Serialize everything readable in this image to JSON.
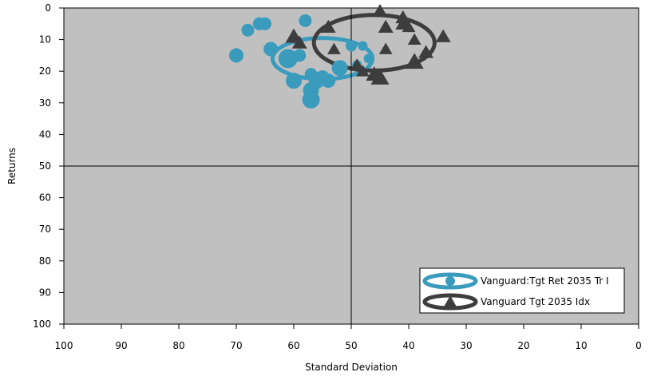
{
  "chart_data": {
    "type": "scatter",
    "xlabel": "Standard Deviation",
    "ylabel": "Returns",
    "xlim": [
      100,
      0
    ],
    "ylim": [
      0,
      100
    ],
    "x_ticks": [
      100,
      90,
      80,
      70,
      60,
      50,
      40,
      30,
      20,
      10,
      0
    ],
    "y_ticks": [
      0,
      10,
      20,
      30,
      40,
      50,
      60,
      70,
      80,
      90,
      100
    ],
    "reference_lines": {
      "x": 50,
      "y": 50
    },
    "plot_background": "#c0c0c0",
    "legend_position": "bottom-right",
    "series": [
      {
        "name": "Vanguard:Tgt Ret 2035 Tr I",
        "marker": "circle",
        "color": "#3a9bbd",
        "ellipse": {
          "cx": 55,
          "cy": 16,
          "rx": 8.7,
          "ry": 6.5
        },
        "points": [
          {
            "x": 70,
            "y": 15,
            "r": 9
          },
          {
            "x": 68,
            "y": 7,
            "r": 8
          },
          {
            "x": 66,
            "y": 5,
            "r": 8
          },
          {
            "x": 65,
            "y": 5,
            "r": 8
          },
          {
            "x": 64,
            "y": 13,
            "r": 9
          },
          {
            "x": 61,
            "y": 16,
            "r": 12
          },
          {
            "x": 60,
            "y": 23,
            "r": 10
          },
          {
            "x": 59,
            "y": 15,
            "r": 8
          },
          {
            "x": 58,
            "y": 4,
            "r": 8
          },
          {
            "x": 57,
            "y": 21,
            "r": 8
          },
          {
            "x": 57,
            "y": 26,
            "r": 10
          },
          {
            "x": 57,
            "y": 29,
            "r": 11
          },
          {
            "x": 56,
            "y": 23,
            "r": 10
          },
          {
            "x": 55,
            "y": 22,
            "r": 9
          },
          {
            "x": 54,
            "y": 23,
            "r": 9
          },
          {
            "x": 52,
            "y": 19,
            "r": 10
          },
          {
            "x": 50,
            "y": 12,
            "r": 7
          },
          {
            "x": 49,
            "y": 18,
            "r": 6
          },
          {
            "x": 48,
            "y": 12,
            "r": 6
          },
          {
            "x": 47,
            "y": 16,
            "r": 6
          }
        ]
      },
      {
        "name": "Vanguard Tgt 2035 Idx",
        "marker": "triangle",
        "color": "#3d3d3d",
        "ellipse": {
          "cx": 46,
          "cy": 11,
          "rx": 10.5,
          "ry": 8.8
        },
        "points": [
          {
            "x": 60,
            "y": 9,
            "s": 10
          },
          {
            "x": 59,
            "y": 11,
            "s": 9
          },
          {
            "x": 54,
            "y": 6,
            "s": 9
          },
          {
            "x": 53,
            "y": 13,
            "s": 8
          },
          {
            "x": 49,
            "y": 18,
            "s": 8
          },
          {
            "x": 48,
            "y": 20,
            "s": 8
          },
          {
            "x": 46,
            "y": 21,
            "s": 10
          },
          {
            "x": 45,
            "y": 22,
            "s": 11
          },
          {
            "x": 45,
            "y": 1,
            "s": 9
          },
          {
            "x": 44,
            "y": 6,
            "s": 9
          },
          {
            "x": 44,
            "y": 13,
            "s": 8
          },
          {
            "x": 41,
            "y": 3,
            "s": 9
          },
          {
            "x": 41,
            "y": 5,
            "s": 9
          },
          {
            "x": 40,
            "y": 6,
            "s": 8
          },
          {
            "x": 39,
            "y": 10,
            "s": 8
          },
          {
            "x": 39,
            "y": 17,
            "s": 11
          },
          {
            "x": 37,
            "y": 14,
            "s": 9
          },
          {
            "x": 34,
            "y": 9,
            "s": 9
          }
        ]
      }
    ]
  }
}
